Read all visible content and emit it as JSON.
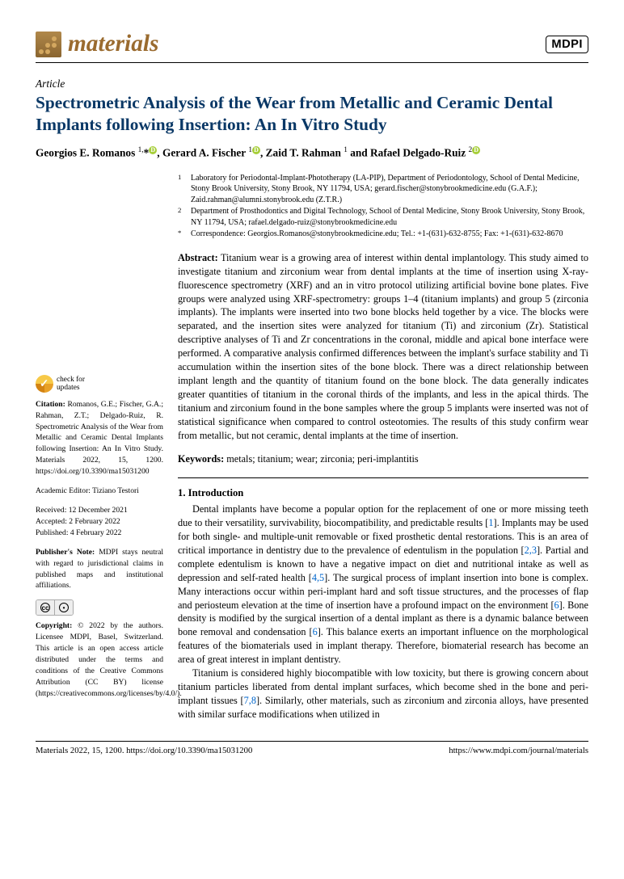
{
  "journal": {
    "name": "materials",
    "publisher": "MDPI"
  },
  "article": {
    "type": "Article",
    "title": "Spectrometric Analysis of the Wear from Metallic and Ceramic Dental Implants following Insertion: An In Vitro Study",
    "authors_html": "Georgios E. Romanos <sup>1,</sup>*<span class='orcid'>D</span>, Gerard A. Fischer <sup>1</sup><span class='orcid'>D</span>, Zaid T. Rahman <sup>1</sup> and Rafael Delgado-Ruiz <sup>2</sup><span class='orcid'>D</span>"
  },
  "affiliations": {
    "a1_num": "1",
    "a1": "Laboratory for Periodontal-Implant-Phototherapy (LA-PIP), Department of Periodontology, School of Dental Medicine, Stony Brook University, Stony Brook, NY 11794, USA; gerard.fischer@stonybrookmedicine.edu (G.A.F.); Zaid.rahman@alumni.stonybrook.edu (Z.T.R.)",
    "a2_num": "2",
    "a2": "Department of Prosthodontics and Digital Technology, School of Dental Medicine, Stony Brook University, Stony Brook, NY 11794, USA; rafael.delgado-ruiz@stonybrookmedicine.edu",
    "corr_num": "*",
    "corr": "Correspondence: Georgios.Romanos@stonybrookmedicine.edu; Tel.: +1-(631)-632-8755; Fax: +1-(631)-632-8670"
  },
  "abstract": {
    "label": "Abstract:",
    "text": " Titanium wear is a growing area of interest within dental implantology. This study aimed to investigate titanium and zirconium wear from dental implants at the time of insertion using X-ray-fluorescence spectrometry (XRF) and an in vitro protocol utilizing artificial bovine bone plates. Five groups were analyzed using XRF-spectrometry: groups 1–4 (titanium implants) and group 5 (zirconia implants). The implants were inserted into two bone blocks held together by a vice. The blocks were separated, and the insertion sites were analyzed for titanium (Ti) and zirconium (Zr). Statistical descriptive analyses of Ti and Zr concentrations in the coronal, middle and apical bone interface were performed. A comparative analysis confirmed differences between the implant's surface stability and Ti accumulation within the insertion sites of the bone block. There was a direct relationship between implant length and the quantity of titanium found on the bone block. The data generally indicates greater quantities of titanium in the coronal thirds of the implants, and less in the apical thirds. The titanium and zirconium found in the bone samples where the group 5 implants were inserted was not of statistical significance when compared to control osteotomies. The results of this study confirm wear from metallic, but not ceramic, dental implants at the time of insertion."
  },
  "keywords": {
    "label": "Keywords:",
    "text": " metals; titanium; wear; zirconia; peri-implantitis"
  },
  "sidebar": {
    "check_updates": "check for\nupdates",
    "citation_label": "Citation:",
    "citation": " Romanos, G.E.; Fischer, G.A.; Rahman, Z.T.; Delgado-Ruiz, R. Spectrometric Analysis of the Wear from Metallic and Ceramic Dental Implants following Insertion: An In Vitro Study. Materials 2022, 15, 1200. https://doi.org/10.3390/ma15031200",
    "editor_label": "Academic Editor: ",
    "editor": "Tiziano Testori",
    "received": "Received: 12 December 2021",
    "accepted": "Accepted: 2 February 2022",
    "published": "Published: 4 February 2022",
    "pubnote_label": "Publisher's Note:",
    "pubnote": " MDPI stays neutral with regard to jurisdictional claims in published maps and institutional affiliations.",
    "copyright_label": "Copyright:",
    "copyright": " © 2022 by the authors. Licensee MDPI, Basel, Switzerland. This article is an open access article distributed under the terms and conditions of the Creative Commons Attribution (CC BY) license (https://creativecommons.org/licenses/by/4.0/)."
  },
  "intro": {
    "heading": "1. Introduction",
    "p1": "Dental implants have become a popular option for the replacement of one or more missing teeth due to their versatility, survivability, biocompatibility, and predictable results [1]. Implants may be used for both single- and multiple-unit removable or fixed prosthetic dental restorations. This is an area of critical importance in dentistry due to the prevalence of edentulism in the population [2,3]. Partial and complete edentulism is known to have a negative impact on diet and nutritional intake as well as depression and self-rated health [4,5]. The surgical process of implant insertion into bone is complex. Many interactions occur within peri-implant hard and soft tissue structures, and the processes of flap and periosteum elevation at the time of insertion have a profound impact on the environment [6]. Bone density is modified by the surgical insertion of a dental implant as there is a dynamic balance between bone removal and condensation [6]. This balance exerts an important influence on the morphological features of the biomaterials used in implant therapy. Therefore, biomaterial research has become an area of great interest in implant dentistry.",
    "p2": "Titanium is considered highly biocompatible with low toxicity, but there is growing concern about titanium particles liberated from dental implant surfaces, which become shed in the bone and peri-implant tissues [7,8]. Similarly, other materials, such as zirconium and zirconia alloys, have presented with similar surface modifications when utilized in"
  },
  "footer": {
    "left": "Materials 2022, 15, 1200. https://doi.org/10.3390/ma15031200",
    "right": "https://www.mdpi.com/journal/materials"
  }
}
